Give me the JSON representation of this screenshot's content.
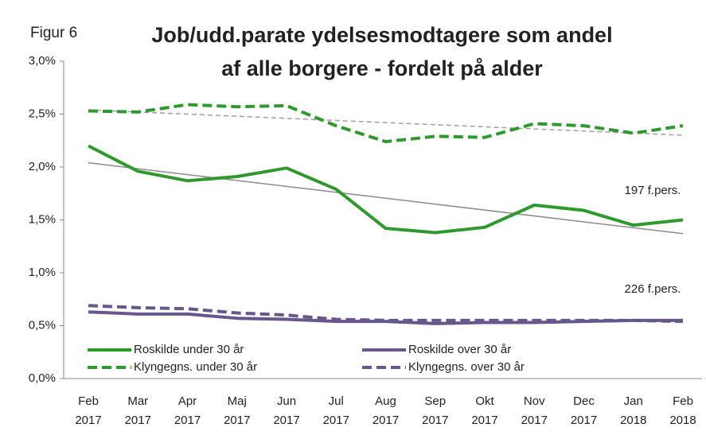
{
  "chart_data": {
    "type": "line",
    "label": "Figur 6",
    "title": [
      "Job/udd.parate ydelsesmodtagere som andel",
      "af alle borgere - fordelt på alder"
    ],
    "categories": [
      [
        "Feb",
        "2017"
      ],
      [
        "Mar",
        "2017"
      ],
      [
        "Apr",
        "2017"
      ],
      [
        "Maj",
        "2017"
      ],
      [
        "Jun",
        "2017"
      ],
      [
        "Jul",
        "2017"
      ],
      [
        "Aug",
        "2017"
      ],
      [
        "Sep",
        "2017"
      ],
      [
        "Okt",
        "2017"
      ],
      [
        "Nov",
        "2017"
      ],
      [
        "Dec",
        "2017"
      ],
      [
        "Jan",
        "2018"
      ],
      [
        "Feb",
        "2018"
      ]
    ],
    "series": [
      {
        "name": "Roskilde under 30 år",
        "color": "#2e9a2e",
        "style": "solid",
        "values": [
          2.2,
          1.96,
          1.87,
          1.91,
          1.99,
          1.79,
          1.42,
          1.38,
          1.43,
          1.64,
          1.59,
          1.45,
          1.5
        ]
      },
      {
        "name": "Roskilde over 30 år",
        "color": "#67578c",
        "style": "solid",
        "values": [
          0.63,
          0.61,
          0.61,
          0.57,
          0.56,
          0.54,
          0.54,
          0.52,
          0.53,
          0.53,
          0.54,
          0.55,
          0.55
        ]
      },
      {
        "name": "Klyngegns. under 30 år",
        "color": "#2e9a2e",
        "style": "dashed",
        "values": [
          2.53,
          2.52,
          2.59,
          2.57,
          2.58,
          2.39,
          2.24,
          2.29,
          2.28,
          2.41,
          2.39,
          2.32,
          2.39
        ]
      },
      {
        "name": "Klyngegns. over 30 år",
        "color": "#67578c",
        "style": "dashed",
        "values": [
          0.69,
          0.67,
          0.66,
          0.62,
          0.6,
          0.56,
          0.55,
          0.55,
          0.55,
          0.55,
          0.55,
          0.55,
          0.54
        ]
      }
    ],
    "trend_lines": [
      {
        "color": "#8c8c8c",
        "style": "solid",
        "values": [
          2.04,
          1.37
        ]
      },
      {
        "color": "#a0a0a0",
        "style": "dashed",
        "values": [
          2.54,
          2.3
        ]
      }
    ],
    "annotations": [
      "197 f.pers.",
      "226  f.pers."
    ],
    "ylim": [
      0,
      3
    ],
    "yticks": [
      {
        "value": 0,
        "label": "0,0%"
      },
      {
        "value": 0.5,
        "label": "0,5%"
      },
      {
        "value": 1,
        "label": "1,0%"
      },
      {
        "value": 1.5,
        "label": "1,5%"
      },
      {
        "value": 2,
        "label": "2,0%"
      },
      {
        "value": 2.5,
        "label": "2,5%"
      },
      {
        "value": 3,
        "label": "3,0%"
      }
    ]
  }
}
